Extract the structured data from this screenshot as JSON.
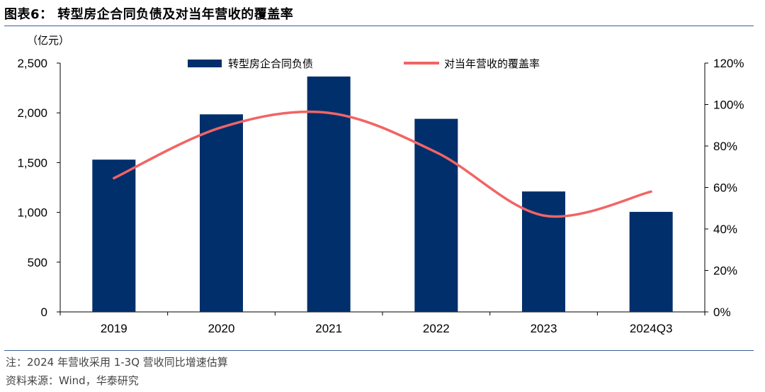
{
  "figure": {
    "title": "图表6：  转型房企合同负债及对当年营收的覆盖率",
    "note": "注：2024 年营收采用 1-3Q 营收同比增速估算",
    "source": "资料来源：Wind，华泰研究"
  },
  "chart_data": {
    "type": "bar",
    "categories": [
      "2019",
      "2020",
      "2021",
      "2022",
      "2023",
      "2024Q3"
    ],
    "series": [
      {
        "name": "转型房企合同负债",
        "type": "bar",
        "axis": "left",
        "color": "#002f6c",
        "values": [
          1530,
          1985,
          2365,
          1940,
          1210,
          1005
        ]
      },
      {
        "name": "对当年营收的覆盖率",
        "type": "line",
        "axis": "right",
        "color": "#f26464",
        "values": [
          64.5,
          89,
          96,
          77,
          46.5,
          58
        ]
      }
    ],
    "ylabel": "（亿元）",
    "ylim": [
      0,
      2500
    ],
    "yticks": [
      "0",
      "500",
      "1,000",
      "1,500",
      "2,000",
      "2,500"
    ],
    "y2lim": [
      0,
      120
    ],
    "y2ticks": [
      "0%",
      "20%",
      "40%",
      "60%",
      "80%",
      "100%",
      "120%"
    ],
    "legend_position": "top",
    "grid": false
  }
}
